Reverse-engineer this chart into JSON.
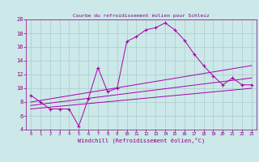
{
  "title": "Courbe du refroidissement éolien pour Schleiz",
  "xlabel": "Windchill (Refroidissement éolien,°C)",
  "background_color": "#cce8e8",
  "grid_color": "#aacccc",
  "line_color": "#aa00aa",
  "xlim": [
    -0.5,
    23.5
  ],
  "ylim": [
    4,
    20
  ],
  "xticks": [
    0,
    1,
    2,
    3,
    4,
    5,
    6,
    7,
    8,
    9,
    10,
    11,
    12,
    13,
    14,
    15,
    16,
    17,
    18,
    19,
    20,
    21,
    22,
    23
  ],
  "yticks": [
    4,
    6,
    8,
    10,
    12,
    14,
    16,
    18,
    20
  ],
  "series1_x": [
    0,
    1,
    2,
    3,
    4,
    5,
    6,
    7,
    8,
    9,
    10,
    11,
    12,
    13,
    14,
    15,
    16,
    17,
    18,
    19,
    20,
    21,
    22,
    23
  ],
  "series1_y": [
    9.0,
    8.0,
    7.0,
    7.0,
    7.0,
    4.5,
    8.5,
    13.0,
    9.5,
    10.0,
    16.8,
    17.5,
    18.5,
    18.8,
    19.5,
    18.5,
    17.0,
    15.0,
    13.3,
    11.8,
    10.5,
    11.5,
    10.5,
    10.5
  ],
  "series2_x": [
    0,
    23
  ],
  "series2_y": [
    8.0,
    13.3
  ],
  "series3_x": [
    0,
    23
  ],
  "series3_y": [
    7.5,
    11.5
  ],
  "series4_x": [
    0,
    23
  ],
  "series4_y": [
    7.0,
    10.0
  ]
}
